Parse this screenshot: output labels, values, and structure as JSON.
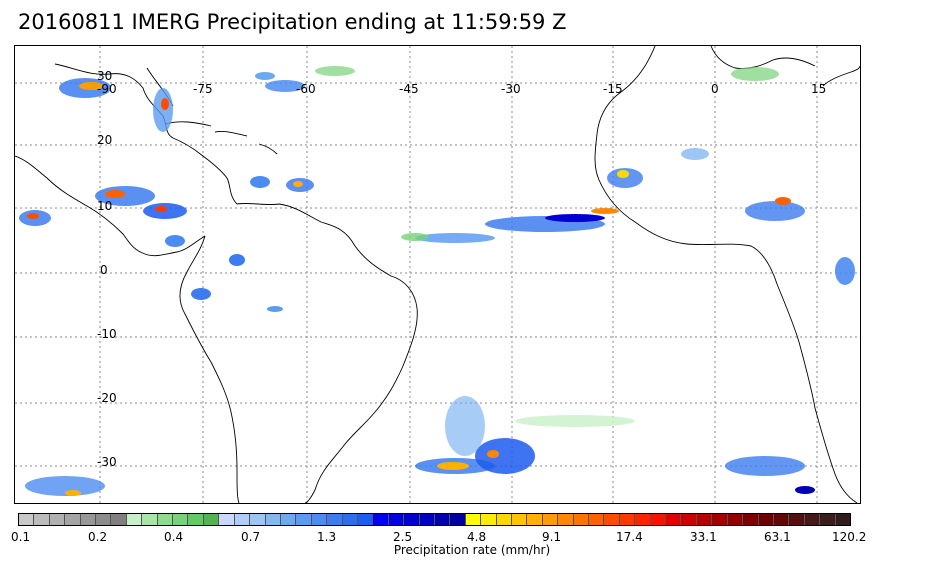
{
  "title": "20160811 IMERG Precipitation ending at 11:59:59 Z",
  "map": {
    "lon_labels": [
      "-90",
      "-75",
      "-60",
      "-45",
      "-30",
      "-15",
      "0",
      "15"
    ],
    "lat_labels": [
      "30",
      "20",
      "10",
      "0",
      "-10",
      "-20",
      "-30"
    ],
    "gridline_color": "#888888",
    "coastline_color": "#000000"
  },
  "colorbar": {
    "label": "Precipitation rate (mm/hr)",
    "tick_labels": [
      "0.1",
      "0.2",
      "0.4",
      "0.7",
      "1.3",
      "2.5",
      "4.8",
      "9.1",
      "17.4",
      "33.1",
      "63.1",
      "120.2"
    ],
    "colors": [
      "#c8c8c8",
      "#bcbcbc",
      "#b0b0b0",
      "#a4a4a4",
      "#989898",
      "#8c8c8c",
      "#808080",
      "#c8f0c8",
      "#a8e6a8",
      "#8cdc8c",
      "#78d278",
      "#64c864",
      "#50b450",
      "#c8d8ff",
      "#b0ccf8",
      "#9cc4f4",
      "#84b8f0",
      "#6caaf0",
      "#5c9cf0",
      "#4c8cf0",
      "#3c7cf0",
      "#2c6cf0",
      "#1c5cf0",
      "#0000f0",
      "#0000e0",
      "#0000d0",
      "#0000c0",
      "#0000b0",
      "#0000a0",
      "#ffff00",
      "#ffec00",
      "#ffd800",
      "#ffc400",
      "#ffb000",
      "#ff9c00",
      "#ff8800",
      "#ff7400",
      "#ff6000",
      "#ff4c00",
      "#ff3800",
      "#ff2400",
      "#ff1000",
      "#e00000",
      "#cc0000",
      "#b80000",
      "#a40000",
      "#900000",
      "#7c0000",
      "#6c0000",
      "#600808",
      "#541010",
      "#481818",
      "#3c1c1c",
      "#301c1c"
    ]
  }
}
